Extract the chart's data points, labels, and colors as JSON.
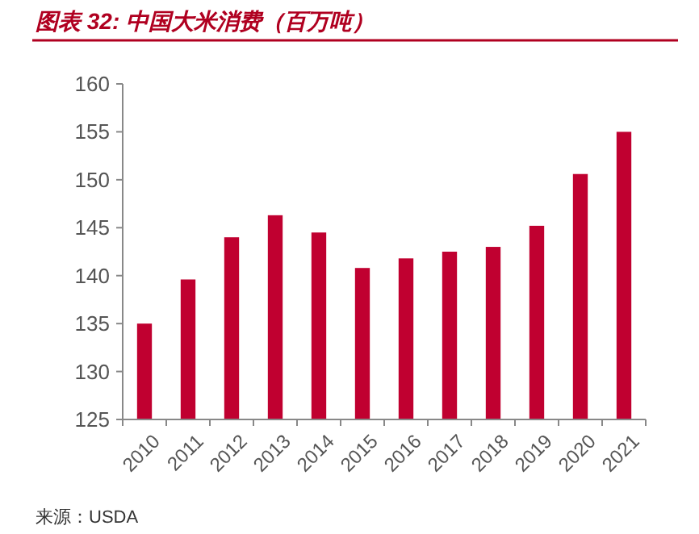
{
  "chart_data": {
    "type": "bar",
    "title": "图表 32:  中国大米消费（百万吨）",
    "categories": [
      "2010",
      "2011",
      "2012",
      "2013",
      "2014",
      "2015",
      "2016",
      "2017",
      "2018",
      "2019",
      "2020",
      "2021"
    ],
    "values": [
      135,
      139.6,
      144,
      146.3,
      144.5,
      140.8,
      141.8,
      142.5,
      143,
      145.2,
      150.6,
      155
    ],
    "color": "#c00030",
    "ylim": [
      125,
      160
    ],
    "yticks": [
      125,
      130,
      135,
      140,
      145,
      150,
      155,
      160
    ],
    "grid": false,
    "annotations": [
      "来源：USDA"
    ]
  }
}
